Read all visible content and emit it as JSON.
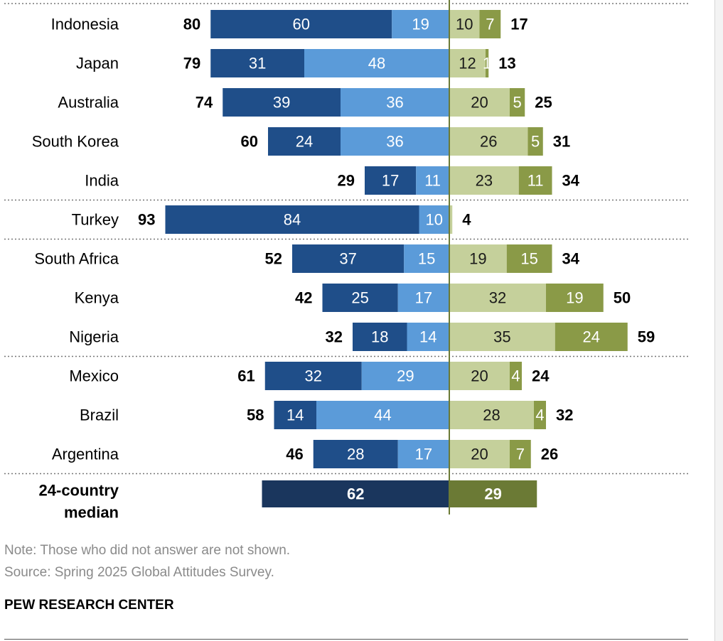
{
  "chart_data": {
    "type": "bar",
    "subtype": "diverging-stacked-horizontal",
    "categories": [
      "Indonesia",
      "Japan",
      "Australia",
      "South Korea",
      "India",
      "Turkey",
      "South Africa",
      "Kenya",
      "Nigeria",
      "Mexico",
      "Brazil",
      "Argentina",
      "24-country median"
    ],
    "series": [
      {
        "values": [
          60,
          31,
          39,
          24,
          17,
          84,
          37,
          25,
          18,
          32,
          14,
          28,
          null
        ],
        "color": "#1f4e89"
      },
      {
        "values": [
          19,
          48,
          36,
          36,
          11,
          10,
          15,
          17,
          14,
          29,
          44,
          17,
          null
        ],
        "color": "#5b9bd9"
      },
      {
        "values": [
          10,
          12,
          20,
          26,
          23,
          1,
          19,
          32,
          35,
          20,
          28,
          20,
          null
        ],
        "color": "#c5d09b"
      },
      {
        "values": [
          7,
          1,
          5,
          5,
          11,
          null,
          15,
          19,
          24,
          4,
          4,
          7,
          null
        ],
        "color": "#8a9a47"
      }
    ],
    "left_totals": [
      80,
      79,
      74,
      60,
      29,
      93,
      52,
      42,
      32,
      61,
      58,
      46,
      62
    ],
    "right_totals": [
      17,
      13,
      25,
      31,
      34,
      4,
      34,
      50,
      59,
      24,
      32,
      26,
      29
    ],
    "median": {
      "left": 62,
      "right": 29,
      "left_color": "#1a365d",
      "right_color": "#6b7a35"
    },
    "group_separators_after_index": [
      4,
      5,
      8,
      11
    ],
    "scale_px_per_point": 4.25
  },
  "footer": {
    "note": "Note: Those who did not answer are not shown.",
    "source": "Source: Spring 2025 Global Attitudes Survey.",
    "brand": "PEW RESEARCH CENTER"
  }
}
